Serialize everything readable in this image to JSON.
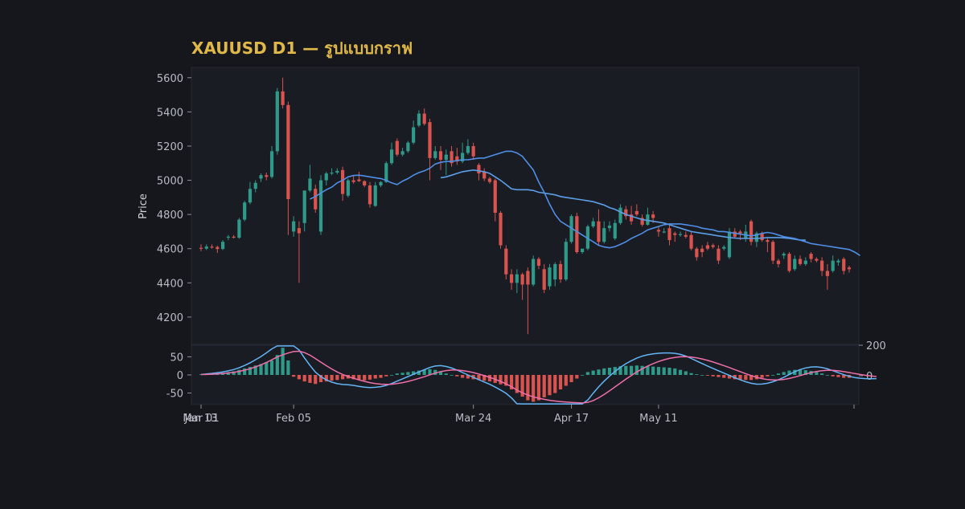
{
  "title": "XAUUSD D1 — รูปแบบกราฟ",
  "colors": {
    "background": "#15171c",
    "panel": "#191c23",
    "panel_border": "#262a35",
    "title": "#e0b84a",
    "up": "#2f9a8a",
    "down": "#d9534f",
    "ma_fast": "#4f8fe6",
    "ma_slow": "#5d9ee8",
    "macd_line": "#64b5f6",
    "signal_line": "#ef6fa8",
    "hist_up": "#2f9a8a",
    "hist_down": "#d9534f",
    "text": "#b8bcc6"
  },
  "chart_data": {
    "type": "candlestick",
    "title": "XAUUSD D1 — รูปแบบกราฟ",
    "ylabel": "Price",
    "x_ticks": [
      "Jan 13",
      "Feb 05",
      "Mar 01",
      "Mar 24",
      "Apr 17",
      "May 11"
    ],
    "y_ticks": [
      4200,
      4400,
      4600,
      4800,
      5000,
      5200,
      5400,
      5600
    ],
    "ylim": [
      4040,
      5660
    ],
    "candles": [
      {
        "date": "Jan 13",
        "o": 4605,
        "h": 4625,
        "l": 4585,
        "c": 4600
      },
      {
        "date": "Jan 14",
        "o": 4600,
        "h": 4625,
        "l": 4592,
        "c": 4612
      },
      {
        "date": "Jan 15",
        "o": 4612,
        "h": 4625,
        "l": 4600,
        "c": 4610
      },
      {
        "date": "Jan 16",
        "o": 4610,
        "h": 4618,
        "l": 4575,
        "c": 4598
      },
      {
        "date": "Jan 19",
        "o": 4598,
        "h": 4650,
        "l": 4592,
        "c": 4640
      },
      {
        "date": "Jan 20",
        "o": 4665,
        "h": 4680,
        "l": 4650,
        "c": 4670
      },
      {
        "date": "Jan 21",
        "o": 4670,
        "h": 4680,
        "l": 4660,
        "c": 4664
      },
      {
        "date": "Jan 22",
        "o": 4664,
        "h": 4780,
        "l": 4658,
        "c": 4770
      },
      {
        "date": "Jan 23",
        "o": 4770,
        "h": 4880,
        "l": 4760,
        "c": 4870
      },
      {
        "date": "Jan 26",
        "o": 4870,
        "h": 4990,
        "l": 4860,
        "c": 4950
      },
      {
        "date": "Jan 27",
        "o": 4950,
        "h": 5000,
        "l": 4930,
        "c": 4985
      },
      {
        "date": "Jan 28",
        "o": 5010,
        "h": 5040,
        "l": 4990,
        "c": 5030
      },
      {
        "date": "Jan 29",
        "o": 5030,
        "h": 5045,
        "l": 5000,
        "c": 5020
      },
      {
        "date": "Jan 30",
        "o": 5020,
        "h": 5200,
        "l": 5010,
        "c": 5170
      },
      {
        "date": "Feb 02",
        "o": 5170,
        "h": 5540,
        "l": 5150,
        "c": 5520
      },
      {
        "date": "Feb 03",
        "o": 5520,
        "h": 5600,
        "l": 5420,
        "c": 5440
      },
      {
        "date": "Feb 04",
        "o": 5440,
        "h": 5460,
        "l": 4680,
        "c": 4890
      },
      {
        "date": "Feb 05",
        "o": 4700,
        "h": 4790,
        "l": 4670,
        "c": 4760
      },
      {
        "date": "Feb 06",
        "o": 4720,
        "h": 4760,
        "l": 4400,
        "c": 4690
      },
      {
        "date": "Feb 09",
        "o": 4750,
        "h": 4940,
        "l": 4700,
        "c": 4940
      },
      {
        "date": "Feb 10",
        "o": 4940,
        "h": 5090,
        "l": 4930,
        "c": 5010
      },
      {
        "date": "Feb 11",
        "o": 4950,
        "h": 4975,
        "l": 4810,
        "c": 4830
      },
      {
        "date": "Feb 12",
        "o": 4700,
        "h": 5030,
        "l": 4680,
        "c": 5000
      },
      {
        "date": "Feb 13",
        "o": 5000,
        "h": 5050,
        "l": 4970,
        "c": 5040
      },
      {
        "date": "Feb 16",
        "o": 5040,
        "h": 5070,
        "l": 5030,
        "c": 5045
      },
      {
        "date": "Feb 17",
        "o": 5045,
        "h": 5070,
        "l": 5035,
        "c": 5055
      },
      {
        "date": "Feb 18",
        "o": 5060,
        "h": 5080,
        "l": 4880,
        "c": 4920
      },
      {
        "date": "Feb 19",
        "o": 4910,
        "h": 5010,
        "l": 4900,
        "c": 5000
      },
      {
        "date": "Feb 20",
        "o": 5000,
        "h": 5030,
        "l": 4980,
        "c": 4990
      },
      {
        "date": "Feb 23",
        "o": 5005,
        "h": 5050,
        "l": 4990,
        "c": 4995
      },
      {
        "date": "Feb 24",
        "o": 4995,
        "h": 5000,
        "l": 4960,
        "c": 4970
      },
      {
        "date": "Feb 25",
        "o": 4970,
        "h": 4990,
        "l": 4840,
        "c": 4860
      },
      {
        "date": "Feb 26",
        "o": 4850,
        "h": 4990,
        "l": 4845,
        "c": 4970
      },
      {
        "date": "Feb 27",
        "o": 4970,
        "h": 4995,
        "l": 4960,
        "c": 4990
      },
      {
        "date": "Mar 02",
        "o": 4990,
        "h": 5110,
        "l": 4985,
        "c": 5100
      },
      {
        "date": "Mar 03",
        "o": 5100,
        "h": 5220,
        "l": 5090,
        "c": 5180
      },
      {
        "date": "Mar 04",
        "o": 5230,
        "h": 5245,
        "l": 5140,
        "c": 5150
      },
      {
        "date": "Mar 05",
        "o": 5150,
        "h": 5190,
        "l": 5140,
        "c": 5170
      },
      {
        "date": "Mar 06",
        "o": 5170,
        "h": 5230,
        "l": 5160,
        "c": 5220
      },
      {
        "date": "Mar 09",
        "o": 5220,
        "h": 5350,
        "l": 5210,
        "c": 5310
      },
      {
        "date": "Mar 10",
        "o": 5320,
        "h": 5410,
        "l": 5310,
        "c": 5390
      },
      {
        "date": "Mar 11",
        "o": 5390,
        "h": 5420,
        "l": 5320,
        "c": 5330
      },
      {
        "date": "Mar 12",
        "o": 5340,
        "h": 5360,
        "l": 5000,
        "c": 5130
      },
      {
        "date": "Mar 13",
        "o": 5130,
        "h": 5200,
        "l": 5120,
        "c": 5170
      },
      {
        "date": "Mar 16",
        "o": 5170,
        "h": 5200,
        "l": 5060,
        "c": 5120
      },
      {
        "date": "Mar 17",
        "o": 5120,
        "h": 5180,
        "l": 5030,
        "c": 5150
      },
      {
        "date": "Mar 18",
        "o": 5170,
        "h": 5200,
        "l": 5080,
        "c": 5100
      },
      {
        "date": "Mar 19",
        "o": 5140,
        "h": 5190,
        "l": 5090,
        "c": 5110
      },
      {
        "date": "Mar 20",
        "o": 5110,
        "h": 5220,
        "l": 5100,
        "c": 5160
      },
      {
        "date": "Mar 23",
        "o": 5160,
        "h": 5240,
        "l": 5150,
        "c": 5200
      },
      {
        "date": "Mar 24",
        "o": 5200,
        "h": 5220,
        "l": 5120,
        "c": 5140
      },
      {
        "date": "Mar 25",
        "o": 5090,
        "h": 5100,
        "l": 5000,
        "c": 5040
      },
      {
        "date": "Mar 26",
        "o": 5050,
        "h": 5070,
        "l": 4995,
        "c": 5010
      },
      {
        "date": "Mar 27",
        "o": 5010,
        "h": 5020,
        "l": 4980,
        "c": 4990
      },
      {
        "date": "Mar 30",
        "o": 5000,
        "h": 5010,
        "l": 4760,
        "c": 4810
      },
      {
        "date": "Mar 31",
        "o": 4810,
        "h": 4820,
        "l": 4600,
        "c": 4620
      },
      {
        "date": "Apr 01",
        "o": 4600,
        "h": 4620,
        "l": 4420,
        "c": 4450
      },
      {
        "date": "Apr 02",
        "o": 4450,
        "h": 4480,
        "l": 4360,
        "c": 4400
      },
      {
        "date": "Apr 03",
        "o": 4400,
        "h": 4480,
        "l": 4340,
        "c": 4450
      },
      {
        "date": "Apr 06",
        "o": 4450,
        "h": 4460,
        "l": 4300,
        "c": 4390
      },
      {
        "date": "Apr 07",
        "o": 4470,
        "h": 4490,
        "l": 4100,
        "c": 4390
      },
      {
        "date": "Apr 08",
        "o": 4390,
        "h": 4560,
        "l": 4380,
        "c": 4540
      },
      {
        "date": "Apr 09",
        "o": 4540,
        "h": 4550,
        "l": 4480,
        "c": 4500
      },
      {
        "date": "Apr 10",
        "o": 4480,
        "h": 4510,
        "l": 4340,
        "c": 4360
      },
      {
        "date": "Apr 13",
        "o": 4380,
        "h": 4510,
        "l": 4360,
        "c": 4490
      },
      {
        "date": "Apr 14",
        "o": 4420,
        "h": 4520,
        "l": 4380,
        "c": 4510
      },
      {
        "date": "Apr 15",
        "o": 4510,
        "h": 4530,
        "l": 4400,
        "c": 4420
      },
      {
        "date": "Apr 16",
        "o": 4420,
        "h": 4660,
        "l": 4410,
        "c": 4640
      },
      {
        "date": "Apr 17",
        "o": 4640,
        "h": 4800,
        "l": 4630,
        "c": 4790
      },
      {
        "date": "Apr 20",
        "o": 4790,
        "h": 4810,
        "l": 4570,
        "c": 4580
      },
      {
        "date": "Apr 21",
        "o": 4580,
        "h": 4600,
        "l": 4570,
        "c": 4600
      },
      {
        "date": "Apr 22",
        "o": 4600,
        "h": 4740,
        "l": 4590,
        "c": 4730
      },
      {
        "date": "Apr 23",
        "o": 4730,
        "h": 4780,
        "l": 4720,
        "c": 4760
      },
      {
        "date": "Apr 24",
        "o": 4760,
        "h": 4830,
        "l": 4620,
        "c": 4640
      },
      {
        "date": "Apr 27",
        "o": 4640,
        "h": 4760,
        "l": 4630,
        "c": 4720
      },
      {
        "date": "Apr 28",
        "o": 4720,
        "h": 4760,
        "l": 4700,
        "c": 4735
      },
      {
        "date": "Apr 29",
        "o": 4660,
        "h": 4770,
        "l": 4650,
        "c": 4750
      },
      {
        "date": "Apr 30",
        "o": 4750,
        "h": 4860,
        "l": 4740,
        "c": 4840
      },
      {
        "date": "May 01",
        "o": 4830,
        "h": 4850,
        "l": 4770,
        "c": 4790
      },
      {
        "date": "May 04",
        "o": 4800,
        "h": 4850,
        "l": 4740,
        "c": 4760
      },
      {
        "date": "May 05",
        "o": 4820,
        "h": 4860,
        "l": 4790,
        "c": 4800
      },
      {
        "date": "May 06",
        "o": 4780,
        "h": 4800,
        "l": 4730,
        "c": 4740
      },
      {
        "date": "May 07",
        "o": 4740,
        "h": 4840,
        "l": 4735,
        "c": 4800
      },
      {
        "date": "May 08",
        "o": 4800,
        "h": 4820,
        "l": 4750,
        "c": 4780
      },
      {
        "date": "May 11",
        "o": 4710,
        "h": 4730,
        "l": 4670,
        "c": 4700
      },
      {
        "date": "May 12",
        "o": 4700,
        "h": 4720,
        "l": 4690,
        "c": 4700
      },
      {
        "date": "May 13",
        "o": 4720,
        "h": 4740,
        "l": 4620,
        "c": 4650
      },
      {
        "date": "May 14",
        "o": 4690,
        "h": 4700,
        "l": 4640,
        "c": 4680
      },
      {
        "date": "May 15",
        "o": 4680,
        "h": 4700,
        "l": 4670,
        "c": 4685
      },
      {
        "date": "May 18",
        "o": 4680,
        "h": 4700,
        "l": 4660,
        "c": 4670
      },
      {
        "date": "May 19",
        "o": 4680,
        "h": 4700,
        "l": 4590,
        "c": 4600
      },
      {
        "date": "May 20",
        "o": 4600,
        "h": 4610,
        "l": 4530,
        "c": 4550
      },
      {
        "date": "May 21",
        "o": 4600,
        "h": 4620,
        "l": 4550,
        "c": 4580
      },
      {
        "date": "May 22",
        "o": 4620,
        "h": 4640,
        "l": 4590,
        "c": 4600
      },
      {
        "date": "May 25",
        "o": 4620,
        "h": 4630,
        "l": 4600,
        "c": 4610
      },
      {
        "date": "May 26",
        "o": 4600,
        "h": 4620,
        "l": 4510,
        "c": 4530
      },
      {
        "date": "May 27",
        "o": 4600,
        "h": 4620,
        "l": 4590,
        "c": 4610
      },
      {
        "date": "May 28",
        "o": 4550,
        "h": 4720,
        "l": 4540,
        "c": 4700
      },
      {
        "date": "May 29",
        "o": 4700,
        "h": 4720,
        "l": 4660,
        "c": 4670
      },
      {
        "date": "Jun 01",
        "o": 4700,
        "h": 4710,
        "l": 4650,
        "c": 4690
      },
      {
        "date": "Jun 02",
        "o": 4660,
        "h": 4740,
        "l": 4640,
        "c": 4700
      },
      {
        "date": "Jun 03",
        "o": 4760,
        "h": 4770,
        "l": 4620,
        "c": 4640
      },
      {
        "date": "Jun 04",
        "o": 4640,
        "h": 4700,
        "l": 4610,
        "c": 4690
      },
      {
        "date": "Jun 05",
        "o": 4690,
        "h": 4700,
        "l": 4640,
        "c": 4650
      },
      {
        "date": "Jun 08",
        "o": 4650,
        "h": 4660,
        "l": 4580,
        "c": 4640
      },
      {
        "date": "Jun 09",
        "o": 4640,
        "h": 4650,
        "l": 4510,
        "c": 4530
      },
      {
        "date": "Jun 10",
        "o": 4530,
        "h": 4540,
        "l": 4490,
        "c": 4510
      },
      {
        "date": "Jun 11",
        "o": 4560,
        "h": 4580,
        "l": 4540,
        "c": 4570
      },
      {
        "date": "Jun 12",
        "o": 4570,
        "h": 4580,
        "l": 4460,
        "c": 4470
      },
      {
        "date": "Jun 15",
        "o": 4480,
        "h": 4560,
        "l": 4470,
        "c": 4540
      },
      {
        "date": "Jun 16",
        "o": 4540,
        "h": 4560,
        "l": 4500,
        "c": 4510
      },
      {
        "date": "Jun 17",
        "o": 4510,
        "h": 4550,
        "l": 4500,
        "c": 4530
      },
      {
        "date": "Jun 18",
        "o": 4570,
        "h": 4580,
        "l": 4520,
        "c": 4540
      },
      {
        "date": "Jun 19",
        "o": 4540,
        "h": 4550,
        "l": 4520,
        "c": 4530
      },
      {
        "date": "Jun 22",
        "o": 4530,
        "h": 4550,
        "l": 4440,
        "c": 4470
      },
      {
        "date": "Jun 23",
        "o": 4470,
        "h": 4510,
        "l": 4360,
        "c": 4440
      },
      {
        "date": "Jun 24",
        "o": 4470,
        "h": 4560,
        "l": 4460,
        "c": 4530
      },
      {
        "date": "Jun 25",
        "o": 4520,
        "h": 4540,
        "l": 4500,
        "c": 4530
      },
      {
        "date": "Jun 26",
        "o": 4540,
        "h": 4550,
        "l": 4450,
        "c": 4470
      },
      {
        "date": "Jun 29",
        "o": 4490,
        "h": 4500,
        "l": 4460,
        "c": 4480
      }
    ],
    "ma_fast": {
      "start_index": 20,
      "values": [
        4890,
        4905,
        4925,
        4945,
        4960,
        4985,
        5000,
        5020,
        5028,
        5030,
        5025,
        5020,
        5015,
        5010,
        5000,
        4985,
        4975,
        4995,
        5010,
        5030,
        5045,
        5055,
        5070,
        5095,
        5105,
        5110,
        5110,
        5115,
        5120,
        5120,
        5125,
        5130,
        5130,
        5140,
        5150,
        5160,
        5170,
        5170,
        5160,
        5140,
        5100,
        5060,
        4990,
        4930,
        4860,
        4800,
        4760,
        4740,
        4720,
        4700,
        4680,
        4660,
        4640,
        4620,
        4610,
        4605,
        4612,
        4625,
        4640,
        4660,
        4675,
        4690,
        4710,
        4720,
        4730,
        4740,
        4745,
        4745,
        4745,
        4740,
        4735,
        4730,
        4720,
        4715,
        4710,
        4700,
        4700,
        4695,
        4690,
        4685,
        4680,
        4675,
        4680,
        4690,
        4695,
        4690,
        4680,
        4670,
        4665,
        4660,
        4650,
        4640,
        4630,
        4625,
        4620,
        4615,
        4610,
        4605,
        4600,
        4595,
        4580,
        4560
      ]
    },
    "ma_slow": {
      "start_index": 44,
      "values": [
        5015,
        5020,
        5030,
        5040,
        5050,
        5055,
        5060,
        5055,
        5050,
        5040,
        5020,
        5000,
        4975,
        4950,
        4945,
        4945,
        4945,
        4940,
        4930,
        4925,
        4920,
        4915,
        4905,
        4900,
        4895,
        4890,
        4885,
        4880,
        4875,
        4865,
        4855,
        4840,
        4830,
        4815,
        4800,
        4790,
        4780,
        4770,
        4765,
        4760,
        4755,
        4750,
        4740,
        4730,
        4720,
        4710,
        4700,
        4695,
        4690,
        4685,
        4680,
        4675,
        4670,
        4665,
        4662,
        4660,
        4660,
        4660,
        4660,
        4662,
        4665,
        4665,
        4665,
        4663,
        4660,
        4655,
        4650,
        4650
      ]
    },
    "macd": {
      "y_ticks": [
        50,
        0,
        -50
      ],
      "right_ticks": [
        200,
        0
      ],
      "ylim": [
        -82,
        82
      ],
      "histogram": [
        2,
        3,
        4,
        5,
        6,
        8,
        10,
        14,
        18,
        22,
        26,
        30,
        35,
        40,
        55,
        75,
        40,
        -5,
        -12,
        -18,
        -22,
        -25,
        -20,
        -18,
        -16,
        -14,
        -12,
        -10,
        -12,
        -14,
        -15,
        -13,
        -10,
        -8,
        -4,
        0,
        4,
        6,
        8,
        10,
        12,
        14,
        16,
        14,
        10,
        4,
        0,
        -4,
        -8,
        -10,
        -12,
        -14,
        -16,
        -18,
        -22,
        -26,
        -30,
        -40,
        -50,
        -60,
        -70,
        -74,
        -70,
        -62,
        -56,
        -50,
        -40,
        -30,
        -20,
        -10,
        0,
        8,
        12,
        15,
        18,
        20,
        22,
        24,
        25,
        25,
        26,
        25,
        24,
        23,
        22,
        21,
        20,
        18,
        14,
        10,
        5,
        2,
        0,
        -2,
        -4,
        -6,
        -8,
        -10,
        -12,
        -13,
        -14,
        -14,
        -12,
        -8,
        -4,
        0,
        4,
        8,
        12,
        14,
        14,
        13,
        11,
        8,
        4,
        0,
        -4,
        -6,
        -8,
        -8,
        -7,
        -6,
        -5,
        -4,
        -3
      ]
    }
  }
}
